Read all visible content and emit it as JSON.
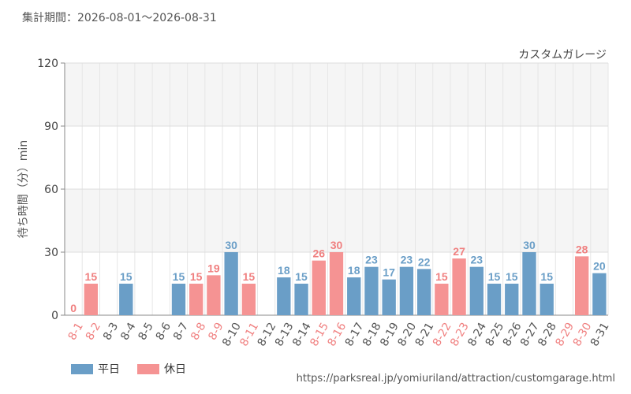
{
  "header": {
    "period": "集計期間：2026-08-01～2026-08-31"
  },
  "source_url": "https://parksreal.jp/yomiuriland/attraction/customgarage.html",
  "colors": {
    "weekday": "#6a9ec7",
    "holiday": "#f59393",
    "label_weekday": "#555555",
    "label_holiday": "#f08080"
  },
  "legend": [
    {
      "label": "平日",
      "color": "#6a9ec7"
    },
    {
      "label": "休日",
      "color": "#f59393"
    }
  ],
  "chart_data": {
    "type": "bar",
    "title": "カスタムガレージ",
    "ylabel": "待ち時間（分）min",
    "xlabel": "",
    "ylim": [
      0,
      120
    ],
    "yticks": [
      0,
      30,
      60,
      90,
      120
    ],
    "grid": true,
    "categories": [
      "8-1",
      "8-2",
      "8-3",
      "8-4",
      "8-5",
      "8-6",
      "8-7",
      "8-8",
      "8-9",
      "8-10",
      "8-11",
      "8-12",
      "8-13",
      "8-14",
      "8-15",
      "8-16",
      "8-17",
      "8-18",
      "8-19",
      "8-20",
      "8-21",
      "8-22",
      "8-23",
      "8-24",
      "8-25",
      "8-26",
      "8-27",
      "8-28",
      "8-29",
      "8-30",
      "8-31"
    ],
    "values": [
      0,
      15,
      null,
      15,
      null,
      null,
      15,
      15,
      19,
      30,
      15,
      null,
      18,
      15,
      26,
      30,
      18,
      23,
      17,
      23,
      22,
      15,
      27,
      23,
      15,
      15,
      30,
      15,
      null,
      28,
      20
    ],
    "day_type": [
      "holiday",
      "holiday",
      "weekday",
      "weekday",
      "weekday",
      "weekday",
      "weekday",
      "holiday",
      "holiday",
      "weekday",
      "holiday",
      "weekday",
      "weekday",
      "weekday",
      "holiday",
      "holiday",
      "weekday",
      "weekday",
      "weekday",
      "weekday",
      "weekday",
      "holiday",
      "holiday",
      "weekday",
      "weekday",
      "weekday",
      "weekday",
      "weekday",
      "holiday",
      "holiday",
      "weekday"
    ]
  }
}
